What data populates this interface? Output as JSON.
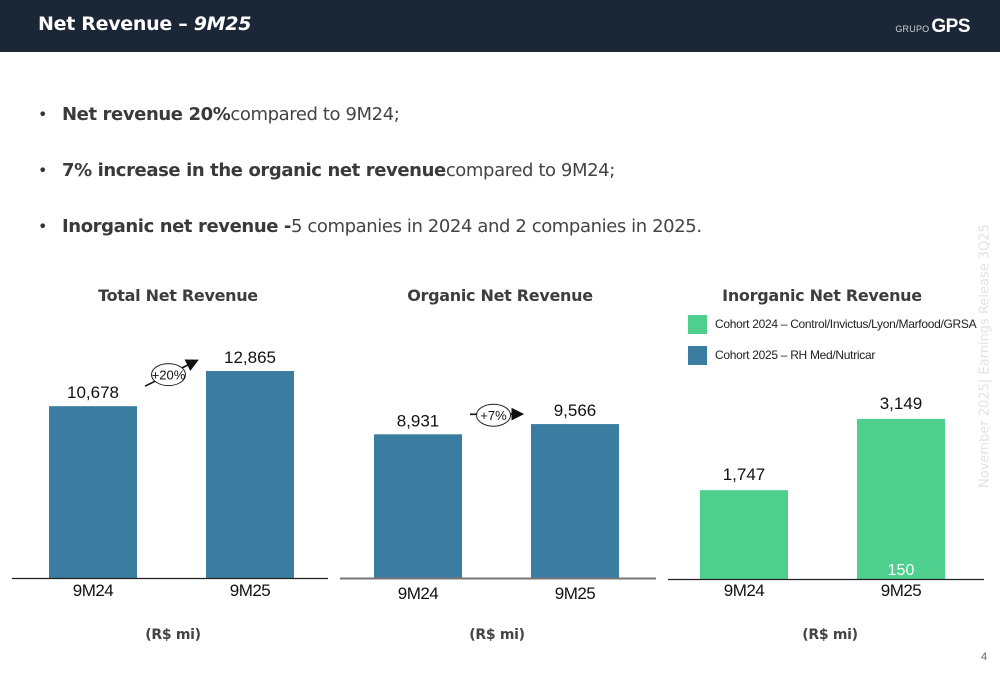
{
  "header": {
    "title_main": "Net Revenue – ",
    "title_period": "9M25",
    "logo_prefix": "GRUPO",
    "logo_name": "GPS"
  },
  "bullets": [
    {
      "bold": "Net revenue 20%",
      "regular": " compared to 9M24;"
    },
    {
      "bold": "7% increase in the organic net revenue",
      "regular": " compared to 9M24;"
    },
    {
      "bold": "Inorganic net revenue - ",
      "regular": "5 companies in 2024 and 2 companies in 2025."
    }
  ],
  "side_text": "November 2025| Earnings Release 3Q25",
  "page_number": "4",
  "colors": {
    "header_bg": "#1b2736",
    "bar_blue": "#3b7ca1",
    "bar_green": "#4fcf8e"
  },
  "chart_data": [
    {
      "type": "bar",
      "title": "Total Net Revenue",
      "unit_label": "(R$ mi)",
      "categories": [
        "9M24",
        "9M25"
      ],
      "values": [
        10678,
        12865
      ],
      "value_labels": [
        "10,678",
        "12,865"
      ],
      "growth_label": "+20%",
      "color": "#3b7ca1",
      "ylim": [
        0,
        14000
      ]
    },
    {
      "type": "bar",
      "title": "Organic Net Revenue",
      "unit_label": "(R$ mi)",
      "categories": [
        "9M24",
        "9M25"
      ],
      "values": [
        8931,
        9566
      ],
      "value_labels": [
        "8,931",
        "9,566"
      ],
      "growth_label": "+7%",
      "color": "#3b7ca1",
      "ylim": [
        0,
        14000
      ]
    },
    {
      "type": "bar",
      "stacked": true,
      "title": "Inorganic Net Revenue",
      "unit_label": "(R$ mi)",
      "categories": [
        "9M24",
        "9M25"
      ],
      "series": [
        {
          "name": "Cohort 2025 – RH Med/Nutricar",
          "color": "#3b7ca1",
          "values": [
            0,
            150
          ]
        },
        {
          "name": "Cohort 2024 – Control/Invictus/Lyon/Marfood/GRSA",
          "color": "#4fcf8e",
          "values": [
            1747,
            2999
          ]
        }
      ],
      "totals": [
        1747,
        3149
      ],
      "total_labels": [
        "1,747",
        "3,149"
      ],
      "segment_labels": [
        "",
        "150"
      ],
      "legend": [
        {
          "label": "Cohort 2024 – Control/Invictus/Lyon/Marfood/GRSA",
          "color": "#4fcf8e"
        },
        {
          "label": "Cohort 2025 – RH Med/Nutricar",
          "color": "#3b7ca1"
        }
      ],
      "legend_position": "top",
      "ylim": [
        0,
        14000
      ]
    }
  ]
}
